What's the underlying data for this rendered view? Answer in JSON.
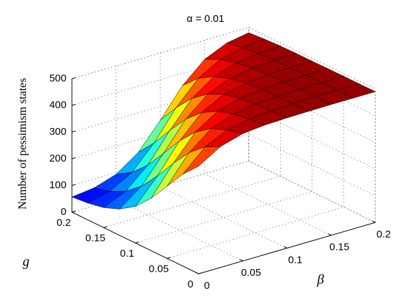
{
  "chart_data": {
    "type": "surface",
    "title": "α = 0.01",
    "xlabel": "β",
    "ylabel": "g",
    "zlabel": "Number of pessimism states",
    "x": [
      0,
      0.025,
      0.05,
      0.075,
      0.1,
      0.125,
      0.15,
      0.175,
      0.2
    ],
    "y": [
      0,
      0.025,
      0.05,
      0.075,
      0.1,
      0.125,
      0.15,
      0.175,
      0.2
    ],
    "z": [
      [
        403,
        453,
        477,
        485,
        488,
        489,
        490,
        490,
        490
      ],
      [
        344,
        422,
        462,
        479,
        486,
        489,
        490,
        490,
        490
      ],
      [
        270,
        372,
        438,
        469,
        482,
        487,
        489,
        490,
        490
      ],
      [
        196,
        303,
        396,
        450,
        474,
        484,
        488,
        489,
        490
      ],
      [
        137,
        227,
        334,
        416,
        460,
        478,
        486,
        488,
        489
      ],
      [
        98,
        160,
        259,
        363,
        433,
        467,
        481,
        487,
        489
      ],
      [
        75,
        112,
        186,
        292,
        388,
        446,
        473,
        483,
        488
      ],
      [
        63,
        83,
        130,
        216,
        324,
        410,
        457,
        477,
        485
      ],
      [
        57,
        67,
        94,
        152,
        248,
        354,
        428,
        465,
        480
      ]
    ],
    "xlim": [
      0,
      0.2
    ],
    "ylim": [
      0,
      0.2
    ],
    "zlim": [
      0,
      500
    ],
    "xticks": [
      0,
      0.05,
      0.1,
      0.15,
      0.2
    ],
    "yticks": [
      0,
      0.05,
      0.1,
      0.15,
      0.2
    ],
    "zticks": [
      0,
      100,
      200,
      300,
      400,
      500
    ],
    "colormap": "jet",
    "grid": true
  }
}
